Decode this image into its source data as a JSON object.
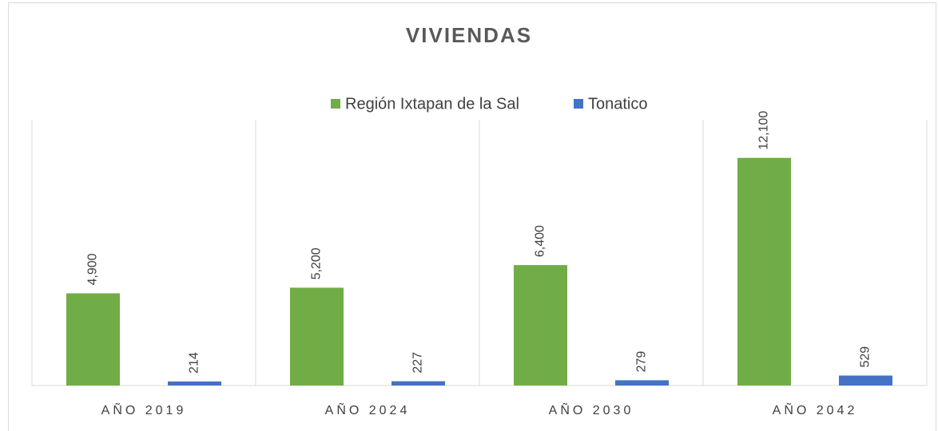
{
  "chart_data": {
    "type": "bar",
    "title": "VIVIENDAS",
    "categories": [
      "AÑO 2019",
      "AÑO 2024",
      "AÑO 2030",
      "AÑO 2042"
    ],
    "series": [
      {
        "name": "Región Ixtapan de la Sal",
        "color": "#70ad47",
        "values": [
          4900,
          5200,
          6400,
          12100
        ],
        "value_labels": [
          "4,900",
          "5,200",
          "6,400",
          "12,100"
        ]
      },
      {
        "name": "Tonatico",
        "color": "#4472c4",
        "values": [
          214,
          227,
          279,
          529
        ]
      }
    ],
    "ylim": [
      0,
      14000
    ],
    "legend": "top"
  }
}
